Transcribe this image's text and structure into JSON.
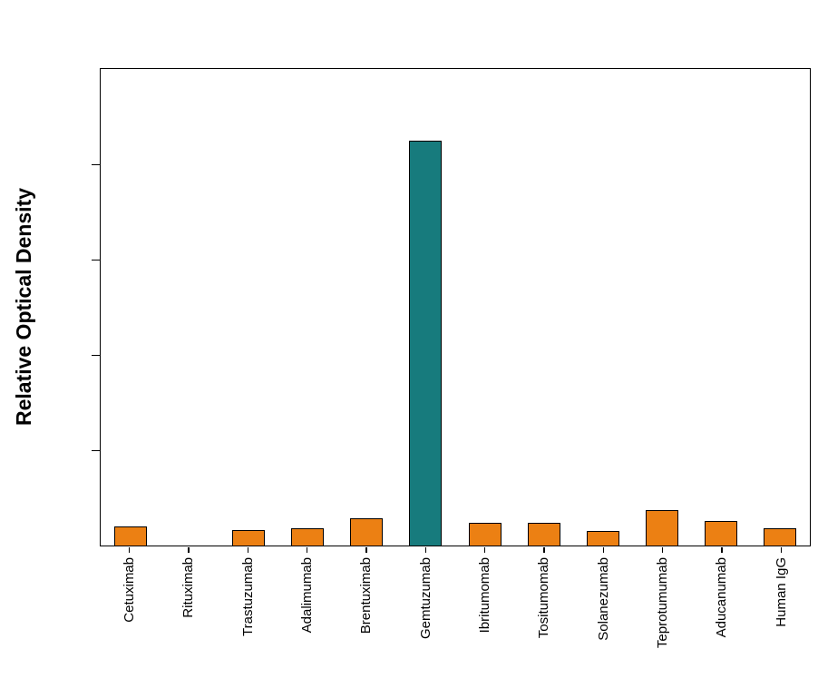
{
  "figure": {
    "background": "#ffffff",
    "axis_color": "#000000"
  },
  "chart": {
    "ylabel": "Relative Optical Density",
    "colors": {
      "default_bar": "#EC8013",
      "highlight_bar": "#177B7D",
      "bar_border": "#000000"
    }
  },
  "chart_data": {
    "type": "bar",
    "title": "",
    "xlabel": "",
    "ylabel": "Relative Optical Density",
    "categories": [
      "Cetuximab",
      "Rituximab",
      "Trastuzumab",
      "Adalimumab",
      "Brentuximab",
      "Gemtuzumab",
      "Ibritumomab",
      "Tositumomab",
      "Solanezumab",
      "Teprotumumab",
      "Aducanumab",
      "Human IgG"
    ],
    "values": [
      0.04,
      0.0,
      0.032,
      0.036,
      0.057,
      0.85,
      0.047,
      0.047,
      0.03,
      0.075,
      0.052,
      0.036
    ],
    "highlight_category": "Gemtuzumab",
    "ylim": [
      0,
      1.0
    ],
    "ytick_interval": 0.2,
    "ytick_labels_visible": false,
    "grid": false,
    "legend": false
  }
}
